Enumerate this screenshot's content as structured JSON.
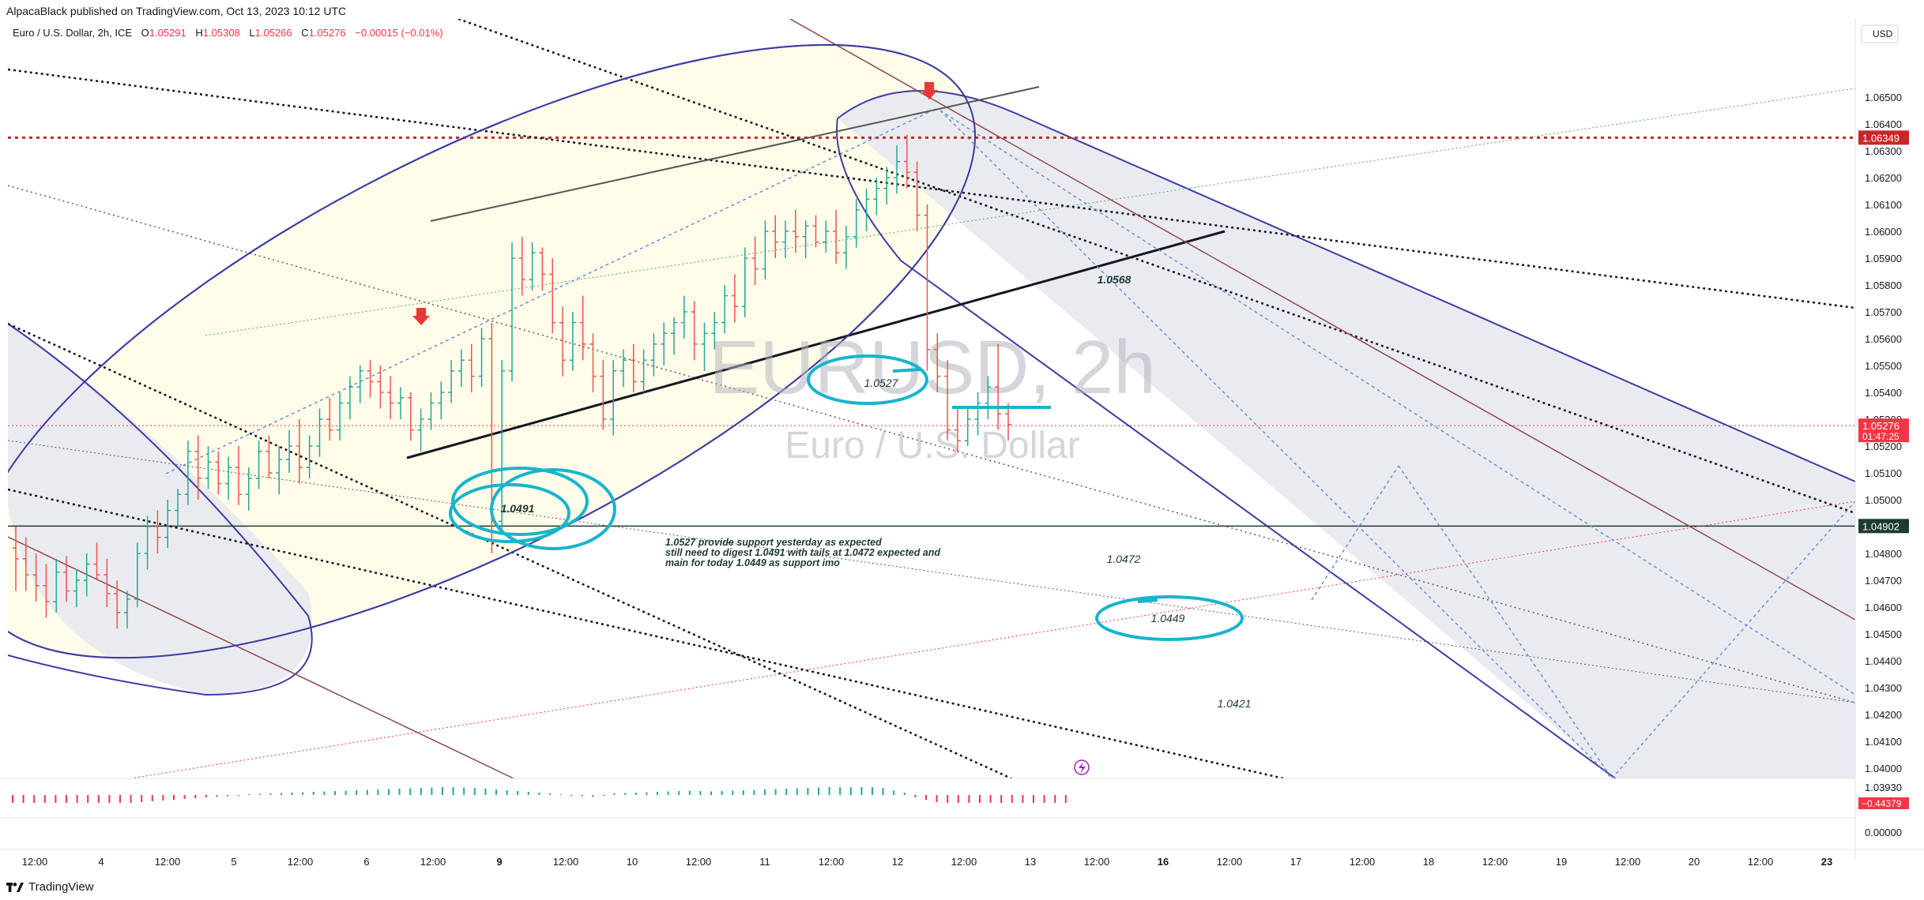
{
  "header": {
    "published": "AlpacaBlack published on TradingView.com, Oct 13, 2023 10:12 UTC",
    "instrument": "Euro / U.S. Dollar, 2h, ICE",
    "o_label": "O",
    "o_value": "1.05291",
    "h_label": "H",
    "h_value": "1.05308",
    "l_label": "L",
    "l_value": "1.05266",
    "c_label": "C",
    "c_value": "1.05276",
    "change": "−0.00015 (−0.01%)"
  },
  "watermark": {
    "symbol": "EURUSD, 2h",
    "name": "Euro / U.S. Dollar"
  },
  "footer": {
    "brand": "TradingView"
  },
  "chart_data": {
    "type": "line",
    "title": "",
    "currency": "USD",
    "y_axis_scale_position": "right",
    "ylim": [
      1.0385,
      1.0662
    ],
    "price_ticks": [
      "1.06500",
      "1.06400",
      "1.06300",
      "1.06200",
      "1.06100",
      "1.06000",
      "1.05900",
      "1.05800",
      "1.05700",
      "1.05600",
      "1.05500",
      "1.05400",
      "1.05300",
      "1.05200",
      "1.05100",
      "1.05000",
      "1.04900",
      "1.04800",
      "1.04700",
      "1.04600",
      "1.04500",
      "1.04400",
      "1.04300",
      "1.04200",
      "1.04100",
      "1.04000",
      "1.03930"
    ],
    "price_labels": [
      {
        "value": "1.06349",
        "price": 1.06349,
        "color": "#c62828"
      },
      {
        "value": "1.05276",
        "sub": "01:47:25",
        "price": 1.05276,
        "color": "#f23645"
      },
      {
        "value": "1.04902",
        "price": 1.04902,
        "color": "#1e3b2f"
      }
    ],
    "time_ticks": [
      "12:00",
      "4",
      "12:00",
      "5",
      "12:00",
      "6",
      "12:00",
      "9",
      "12:00",
      "10",
      "12:00",
      "11",
      "12:00",
      "12",
      "12:00",
      "13",
      "12:00",
      "16",
      "12:00",
      "17",
      "12:00",
      "18",
      "12:00",
      "19",
      "12:00",
      "20",
      "12:00",
      "23"
    ],
    "bold_time_ticks": [
      "9",
      "16",
      "23"
    ],
    "annotations": [
      {
        "text": "1.0568",
        "price": 1.0568,
        "bold": true
      },
      {
        "text": "1.0527",
        "price": 1.0527,
        "circled": true
      },
      {
        "text": "1.0491",
        "price": 1.0491,
        "bold": true,
        "circled": true
      },
      {
        "text": "1.0472",
        "price": 1.0472
      },
      {
        "text": "1.0449",
        "price": 1.0449,
        "circled": true
      },
      {
        "text": "1.0421",
        "price": 1.0421
      }
    ],
    "note_lines": [
      "1.0527 provide support yesterday as expected",
      "still need to digest 1.0491 with tails at 1.0472 expected and",
      "main for today 1.0449 as support imo"
    ],
    "oscillator": {
      "value": "−0.44379",
      "axis_label": "0.00000",
      "values": [
        -1,
        -1,
        -1,
        -1,
        -1,
        -1,
        -1,
        -1,
        -1,
        -1,
        -1,
        -1,
        -0.9,
        -0.8,
        -0.7,
        -0.6,
        -0.5,
        -0.4,
        -0.3,
        -0.2,
        -0.15,
        -0.1,
        0.1,
        0.15,
        0.2,
        0.25,
        0.3,
        0.35,
        0.4,
        0.45,
        0.5,
        0.55,
        0.6,
        0.65,
        0.7,
        0.75,
        0.8,
        0.85,
        0.9,
        0.95,
        1,
        1,
        0.95,
        0.9,
        0.8,
        0.7,
        0.6,
        0.5,
        0.4,
        0.3,
        0.2,
        0.1,
        -0.1,
        -0.15,
        -0.2,
        -0.1,
        0.2,
        0.25,
        0.3,
        0.35,
        0.4,
        0.45,
        0.5,
        0.55,
        0.5,
        0.45,
        0.5,
        0.55,
        0.6,
        0.65,
        0.7,
        0.75,
        0.8,
        0.85,
        0.9,
        0.95,
        1,
        1,
        1,
        1,
        1,
        0.9,
        0.6,
        0.3,
        -0.3,
        -0.6,
        -0.9,
        -1,
        -1,
        -1,
        -1,
        -1,
        -1,
        -1,
        -1,
        -1,
        -1,
        -1,
        -1
      ]
    },
    "candles": [
      [
        1.0482,
        1.049,
        1.0466,
        1.0478
      ],
      [
        1.0478,
        1.0486,
        1.0466,
        1.0472
      ],
      [
        1.0472,
        1.048,
        1.0462,
        1.0468
      ],
      [
        1.0468,
        1.0476,
        1.0456,
        1.0462
      ],
      [
        1.0462,
        1.0478,
        1.0458,
        1.0473
      ],
      [
        1.0473,
        1.0479,
        1.0462,
        1.0466
      ],
      [
        1.0466,
        1.0474,
        1.046,
        1.047
      ],
      [
        1.047,
        1.048,
        1.0464,
        1.0476
      ],
      [
        1.0476,
        1.0484,
        1.047,
        1.0472
      ],
      [
        1.0472,
        1.0478,
        1.046,
        1.0465
      ],
      [
        1.0465,
        1.047,
        1.0452,
        1.0458
      ],
      [
        1.0458,
        1.0466,
        1.0452,
        1.0463
      ],
      [
        1.0463,
        1.0484,
        1.046,
        1.048
      ],
      [
        1.048,
        1.0494,
        1.0474,
        1.049
      ],
      [
        1.049,
        1.0496,
        1.048,
        1.0486
      ],
      [
        1.0486,
        1.05,
        1.0482,
        1.0496
      ],
      [
        1.0496,
        1.0504,
        1.049,
        1.0502
      ],
      [
        1.0502,
        1.0522,
        1.0498,
        1.0518
      ],
      [
        1.0518,
        1.0524,
        1.05,
        1.0508
      ],
      [
        1.0508,
        1.052,
        1.0504,
        1.0514
      ],
      [
        1.0514,
        1.0518,
        1.0502,
        1.0506
      ],
      [
        1.0506,
        1.0516,
        1.05,
        1.0512
      ],
      [
        1.0512,
        1.052,
        1.0498,
        1.0502
      ],
      [
        1.0502,
        1.0512,
        1.0496,
        1.0508
      ],
      [
        1.0508,
        1.0522,
        1.0504,
        1.0518
      ],
      [
        1.0518,
        1.0524,
        1.0508,
        1.051
      ],
      [
        1.051,
        1.052,
        1.0502,
        1.0515
      ],
      [
        1.0515,
        1.0526,
        1.051,
        1.052
      ],
      [
        1.052,
        1.053,
        1.0506,
        1.0512
      ],
      [
        1.0512,
        1.0524,
        1.0508,
        1.052
      ],
      [
        1.052,
        1.0534,
        1.0516,
        1.053
      ],
      [
        1.053,
        1.0538,
        1.0522,
        1.0526
      ],
      [
        1.0526,
        1.054,
        1.0522,
        1.0536
      ],
      [
        1.0536,
        1.0546,
        1.053,
        1.0542
      ],
      [
        1.0542,
        1.055,
        1.0536,
        1.0548
      ],
      [
        1.0548,
        1.0552,
        1.0538,
        1.0544
      ],
      [
        1.0544,
        1.055,
        1.0534,
        1.054
      ],
      [
        1.054,
        1.0546,
        1.053,
        1.0536
      ],
      [
        1.0536,
        1.0542,
        1.053,
        1.0538
      ],
      [
        1.0538,
        1.054,
        1.0522,
        1.0526
      ],
      [
        1.0526,
        1.0534,
        1.0518,
        1.053
      ],
      [
        1.053,
        1.054,
        1.0526,
        1.0536
      ],
      [
        1.0536,
        1.0544,
        1.053,
        1.054
      ],
      [
        1.054,
        1.0552,
        1.0536,
        1.0548
      ],
      [
        1.0548,
        1.0556,
        1.0542,
        1.0552
      ],
      [
        1.0552,
        1.0558,
        1.054,
        1.0546
      ],
      [
        1.0546,
        1.0564,
        1.0542,
        1.056
      ],
      [
        1.056,
        1.0566,
        1.048,
        1.0492
      ],
      [
        1.0492,
        1.0552,
        1.0488,
        1.0548
      ],
      [
        1.0548,
        1.0596,
        1.0544,
        1.059
      ],
      [
        1.059,
        1.0598,
        1.0576,
        1.0582
      ],
      [
        1.0582,
        1.0596,
        1.0578,
        1.0592
      ],
      [
        1.0592,
        1.0594,
        1.0578,
        1.0584
      ],
      [
        1.0584,
        1.059,
        1.0562,
        1.0566
      ],
      [
        1.0566,
        1.0572,
        1.0546,
        1.0552
      ],
      [
        1.0552,
        1.057,
        1.0548,
        1.0566
      ],
      [
        1.0566,
        1.0576,
        1.0552,
        1.0558
      ],
      [
        1.0558,
        1.0562,
        1.054,
        1.0546
      ],
      [
        1.0546,
        1.0552,
        1.0526,
        1.053
      ],
      [
        1.053,
        1.0552,
        1.0524,
        1.0548
      ],
      [
        1.0548,
        1.0556,
        1.0542,
        1.0552
      ],
      [
        1.0552,
        1.0558,
        1.054,
        1.0544
      ],
      [
        1.0544,
        1.0556,
        1.054,
        1.0552
      ],
      [
        1.0552,
        1.0562,
        1.0546,
        1.0558
      ],
      [
        1.0558,
        1.0566,
        1.055,
        1.0562
      ],
      [
        1.0562,
        1.0568,
        1.0554,
        1.0566
      ],
      [
        1.0566,
        1.0576,
        1.056,
        1.057
      ],
      [
        1.057,
        1.0574,
        1.0552,
        1.0558
      ],
      [
        1.0558,
        1.0566,
        1.0548,
        1.0562
      ],
      [
        1.0562,
        1.057,
        1.0556,
        1.0566
      ],
      [
        1.0566,
        1.058,
        1.0562,
        1.0576
      ],
      [
        1.0576,
        1.0584,
        1.0566,
        1.0572
      ],
      [
        1.0572,
        1.0594,
        1.0568,
        1.059
      ],
      [
        1.059,
        1.0598,
        1.058,
        1.0586
      ],
      [
        1.0586,
        1.0604,
        1.0582,
        1.06
      ],
      [
        1.06,
        1.0606,
        1.059,
        1.0596
      ],
      [
        1.0596,
        1.0604,
        1.059,
        1.06
      ],
      [
        1.06,
        1.0608,
        1.0592,
        1.0598
      ],
      [
        1.0598,
        1.0604,
        1.059,
        1.0602
      ],
      [
        1.0602,
        1.0606,
        1.0594,
        1.0596
      ],
      [
        1.0596,
        1.0604,
        1.0592,
        1.06
      ],
      [
        1.06,
        1.0608,
        1.0588,
        1.0592
      ],
      [
        1.0592,
        1.0602,
        1.0586,
        1.0598
      ],
      [
        1.0598,
        1.0612,
        1.0594,
        1.0608
      ],
      [
        1.0608,
        1.0616,
        1.06,
        1.0612
      ],
      [
        1.0612,
        1.062,
        1.0606,
        1.0616
      ],
      [
        1.0616,
        1.0624,
        1.061,
        1.062
      ],
      [
        1.062,
        1.0632,
        1.0614,
        1.0626
      ],
      [
        1.0626,
        1.0636,
        1.0616,
        1.0622
      ],
      [
        1.0622,
        1.0626,
        1.06,
        1.0606
      ],
      [
        1.0606,
        1.061,
        1.0548,
        1.0556
      ],
      [
        1.0556,
        1.0562,
        1.054,
        1.0546
      ],
      [
        1.0546,
        1.0552,
        1.0522,
        1.0526
      ],
      [
        1.0526,
        1.0534,
        1.0518,
        1.0522
      ],
      [
        1.0522,
        1.0534,
        1.052,
        1.053
      ],
      [
        1.053,
        1.054,
        1.0524,
        1.0536
      ],
      [
        1.0536,
        1.0546,
        1.053,
        1.0542
      ],
      [
        1.0542,
        1.0558,
        1.0526,
        1.0532
      ],
      [
        1.0532,
        1.0536,
        1.0522,
        1.0528
      ]
    ]
  }
}
